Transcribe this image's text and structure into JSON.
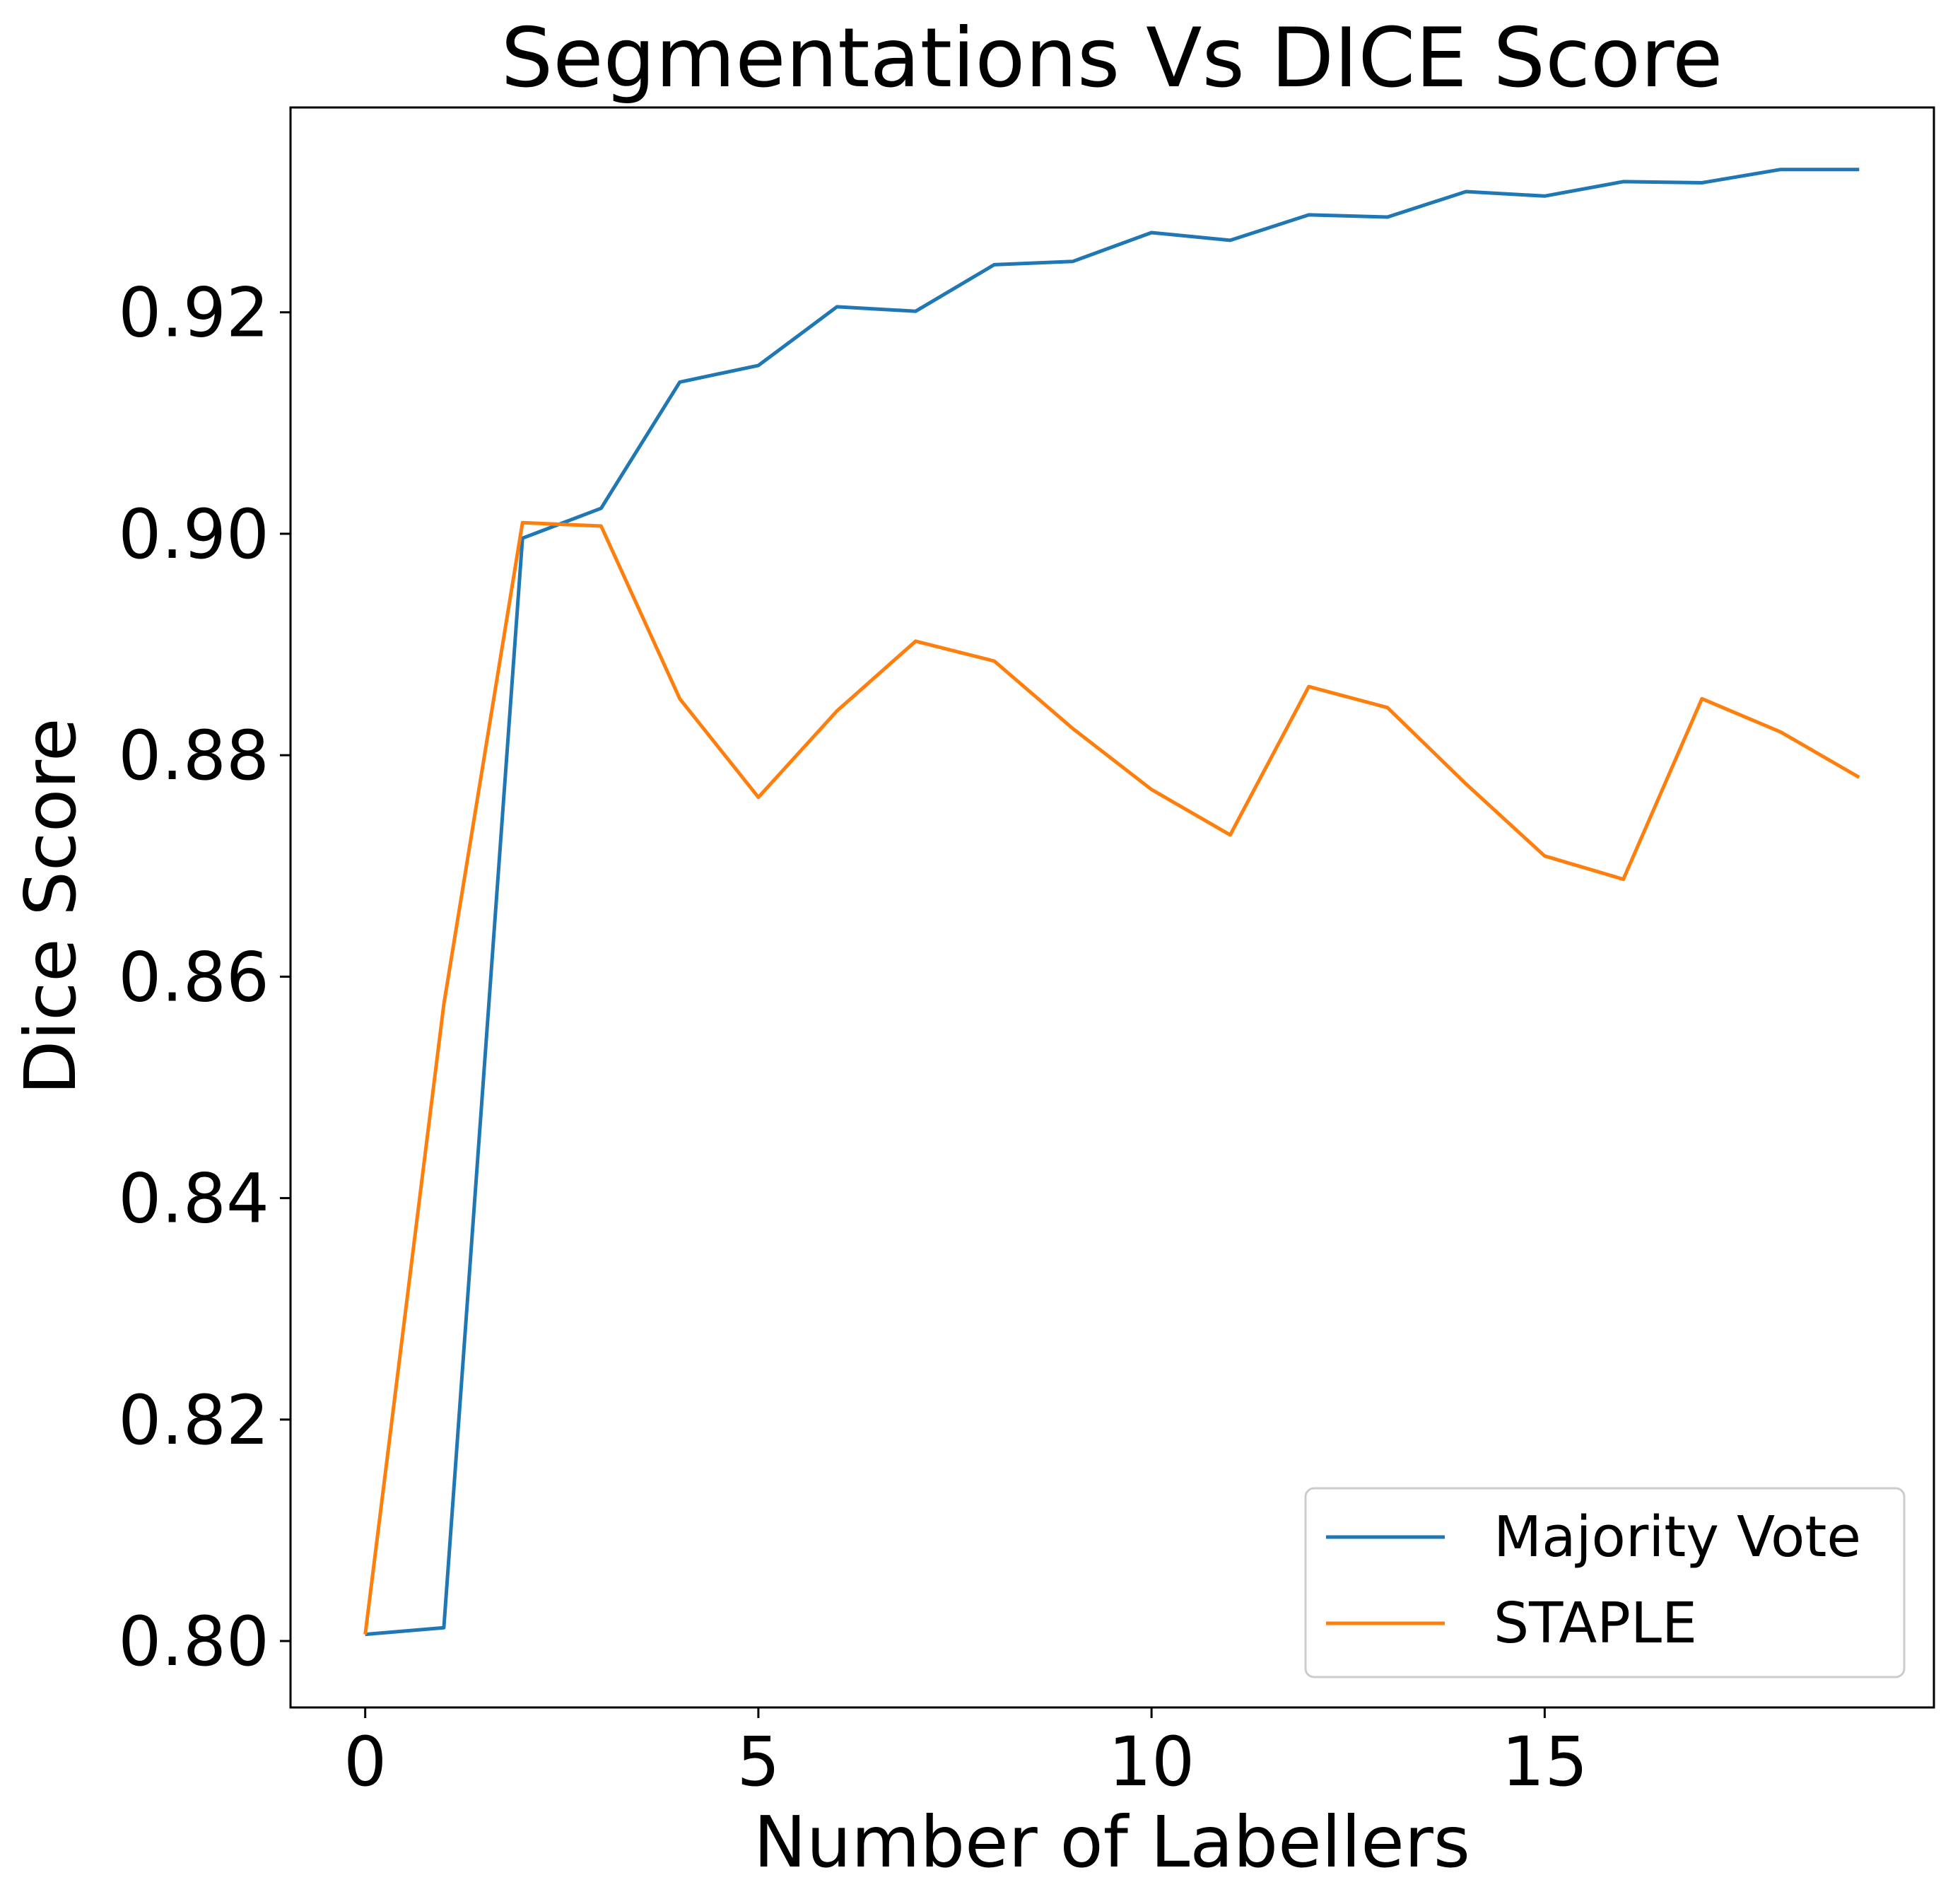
{
  "chart_data": {
    "type": "line",
    "title": "Segmentations Vs DICE Score",
    "xlabel": "Number of Labellers",
    "ylabel": "Dice Score",
    "xlim": [
      -0.95,
      19.95
    ],
    "ylim": [
      0.794,
      0.9385
    ],
    "xticks": [
      0,
      5,
      10,
      15
    ],
    "yticks": [
      0.8,
      0.82,
      0.84,
      0.86,
      0.88,
      0.9,
      0.92
    ],
    "ytick_labels": [
      "0.80",
      "0.82",
      "0.84",
      "0.86",
      "0.88",
      "0.90",
      "0.92"
    ],
    "grid": false,
    "legend_position": "lower-right",
    "x": [
      0,
      1,
      2,
      3,
      4,
      5,
      6,
      7,
      8,
      9,
      10,
      11,
      12,
      13,
      14,
      15,
      16,
      17,
      18,
      19
    ],
    "series": [
      {
        "name": "Majority Vote",
        "color": "#1f77b4",
        "values": [
          0.8006,
          0.8012,
          0.8996,
          0.9023,
          0.9137,
          0.9152,
          0.9205,
          0.9201,
          0.9243,
          0.9246,
          0.9272,
          0.9265,
          0.9288,
          0.9286,
          0.9309,
          0.9305,
          0.9318,
          0.9317,
          0.9329,
          0.9329
        ]
      },
      {
        "name": "STAPLE",
        "color": "#ff7f0e",
        "values": [
          0.8006,
          0.8575,
          0.901,
          0.9007,
          0.8851,
          0.8762,
          0.884,
          0.8903,
          0.8885,
          0.8824,
          0.8769,
          0.8728,
          0.8862,
          0.8843,
          0.8774,
          0.8709,
          0.8688,
          0.8851,
          0.8821,
          0.878
        ]
      }
    ]
  }
}
